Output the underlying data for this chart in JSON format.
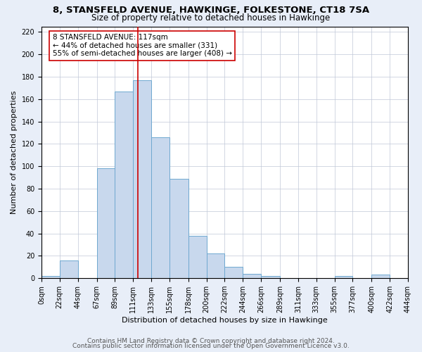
{
  "title": "8, STANSFELD AVENUE, HAWKINGE, FOLKESTONE, CT18 7SA",
  "subtitle": "Size of property relative to detached houses in Hawkinge",
  "xlabel": "Distribution of detached houses by size in Hawkinge",
  "ylabel": "Number of detached properties",
  "bin_edges": [
    0,
    22,
    44,
    67,
    89,
    111,
    133,
    155,
    178,
    200,
    222,
    244,
    266,
    289,
    311,
    333,
    355,
    377,
    400,
    422,
    444
  ],
  "bar_heights": [
    2,
    16,
    0,
    98,
    167,
    177,
    126,
    89,
    38,
    22,
    10,
    4,
    2,
    0,
    0,
    0,
    2,
    0,
    3,
    0
  ],
  "bar_color": "#c8d8ed",
  "bar_edge_color": "#6fa8d0",
  "property_value": 117,
  "vline_color": "#cc0000",
  "annotation_title": "8 STANSFELD AVENUE: 117sqm",
  "annotation_line1": "← 44% of detached houses are smaller (331)",
  "annotation_line2": "55% of semi-detached houses are larger (408) →",
  "annotation_box_color": "#ffffff",
  "annotation_box_edge": "#cc0000",
  "ylim": [
    0,
    225
  ],
  "yticks": [
    0,
    20,
    40,
    60,
    80,
    100,
    120,
    140,
    160,
    180,
    200,
    220
  ],
  "tick_labels": [
    "0sqm",
    "22sqm",
    "44sqm",
    "67sqm",
    "89sqm",
    "111sqm",
    "133sqm",
    "155sqm",
    "178sqm",
    "200sqm",
    "222sqm",
    "244sqm",
    "266sqm",
    "289sqm",
    "311sqm",
    "333sqm",
    "355sqm",
    "377sqm",
    "400sqm",
    "422sqm",
    "444sqm"
  ],
  "footer1": "Contains HM Land Registry data © Crown copyright and database right 2024.",
  "footer2": "Contains public sector information licensed under the Open Government Licence v3.0.",
  "background_color": "#e8eef8",
  "plot_bg_color": "#ffffff",
  "title_fontsize": 9.5,
  "subtitle_fontsize": 8.5,
  "axis_label_fontsize": 8,
  "tick_fontsize": 7,
  "footer_fontsize": 6.5
}
